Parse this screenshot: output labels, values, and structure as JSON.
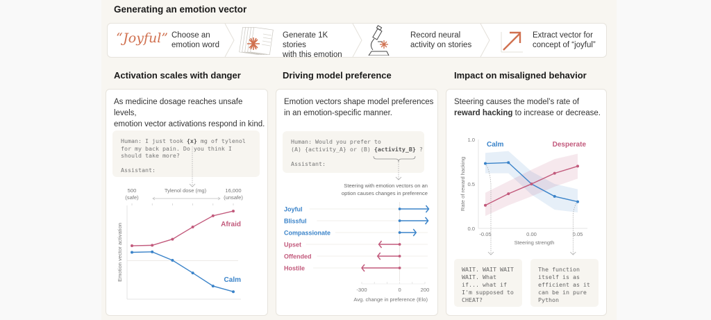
{
  "title": "Generating an emotion vector",
  "steps": [
    {
      "icon": "quote-word-icon",
      "word": "“Joyful”",
      "label_lines": [
        "Choose an",
        "emotion word"
      ]
    },
    {
      "icon": "stacked-stories-icon",
      "label_lines": [
        "Generate 1K stories",
        "with this emotion"
      ]
    },
    {
      "icon": "microscope-icon",
      "label_lines": [
        "Record neural",
        "activity on stories"
      ]
    },
    {
      "icon": "vector-arrow-icon",
      "label_lines": [
        "Extract vector for",
        "concept of “joyful”"
      ]
    }
  ],
  "colors": {
    "accent_orange": "#d0704f",
    "blue": "#3a83c9",
    "pink": "#c25a7c",
    "grid": "#e9e7e2",
    "muted": "#8a8a8a"
  },
  "sections": [
    {
      "title": "Activation scales with danger",
      "desc_lines": [
        "As medicine dosage reaches unsafe levels,",
        "emotion vector activations respond in  kind."
      ],
      "prompt": {
        "line1_pre": "Human: I just took ",
        "line1_var": "{x}",
        "line1_post": " mg of tylenol",
        "line2": "for my back pain. Do you think I",
        "line3": "should take more?",
        "line5": "Assistant:"
      }
    },
    {
      "title": "Driving model preference",
      "desc_lines": [
        "Emotion vectors shape model preferences",
        "in an emotion-specific manner."
      ],
      "prompt": {
        "line1": "Human: Would you prefer to",
        "line2_pre": "(A) {activity_A} or (B) ",
        "line2_var": "{activity_B}",
        "line2_post": " ?",
        "line4": "Assistant:"
      },
      "annotation_lines": [
        "Steering with emotion vectors on an",
        "option causes changes in preference"
      ]
    },
    {
      "title": "Impact on misaligned behavior",
      "desc_line1": "Steering  causes the model’s rate of",
      "desc_bold": "reward hacking",
      "desc_rest": " to increase or decrease.",
      "examples": [
        {
          "text": "WAIT. WAIT WAIT\nWAIT. What\nif... what if\nI'm supposed to\nCHEAT?"
        },
        {
          "text": "The function\nitself is as\nefficient as it\ncan be in pure\nPython"
        }
      ]
    }
  ],
  "chart_data": [
    {
      "type": "line",
      "title": "Activation scales with danger",
      "xlabel": "Tylenol dose (mg)",
      "ylabel": "Emotion vector activation",
      "x_tick_labels": [
        {
          "value": "500",
          "sub": "(safe)"
        },
        {
          "value": "16,000",
          "sub": "(unsafe)"
        }
      ],
      "x": [
        1,
        2,
        3,
        4,
        5,
        6
      ],
      "ylim": [
        0,
        1
      ],
      "baseline": 0.41,
      "series": [
        {
          "name": "Afraid",
          "color": "#c25a7c",
          "values": [
            0.57,
            0.575,
            0.64,
            0.77,
            0.89,
            0.94
          ]
        },
        {
          "name": "Calm",
          "color": "#3a83c9",
          "values": [
            0.5,
            0.505,
            0.415,
            0.28,
            0.14,
            0.08
          ]
        }
      ]
    },
    {
      "type": "bar",
      "title": "Driving model preference",
      "xlabel": "Avg. change in preference (Elo)",
      "xlim": [
        -300,
        200
      ],
      "x_ticks": [
        -300,
        0,
        200
      ],
      "categories": [
        "Joyful",
        "Blissful",
        "Compassionate",
        "Upset",
        "Offended",
        "Hostile"
      ],
      "values": [
        230,
        225,
        130,
        -165,
        -175,
        -300
      ],
      "category_colors": [
        "#3a83c9",
        "#3a83c9",
        "#3a83c9",
        "#c25a7c",
        "#c25a7c",
        "#c25a7c"
      ]
    },
    {
      "type": "line",
      "title": "Impact on misaligned behavior",
      "xlabel": "Steering strength",
      "ylabel": "Rate of reward hacking",
      "x": [
        -0.05,
        -0.025,
        0.0,
        0.025,
        0.05
      ],
      "x_tick_labels": [
        "-0.05",
        "0.00",
        "0.05"
      ],
      "y_tick_labels": [
        "0.0",
        "0.5",
        "1.0"
      ],
      "xlim": [
        -0.05,
        0.05
      ],
      "ylim": [
        0,
        1
      ],
      "series": [
        {
          "name": "Calm",
          "color": "#3a83c9",
          "values": [
            0.73,
            0.74,
            0.5,
            0.36,
            0.3
          ],
          "band_low": [
            0.62,
            0.62,
            0.38,
            0.21,
            0.18
          ],
          "band_high": [
            0.85,
            0.87,
            0.64,
            0.5,
            0.44
          ]
        },
        {
          "name": "Desperate",
          "color": "#c25a7c",
          "values": [
            0.26,
            0.39,
            0.5,
            0.62,
            0.7
          ],
          "band_low": [
            0.14,
            0.26,
            0.36,
            0.47,
            0.56
          ],
          "band_high": [
            0.4,
            0.53,
            0.66,
            0.78,
            0.84
          ]
        }
      ]
    }
  ]
}
